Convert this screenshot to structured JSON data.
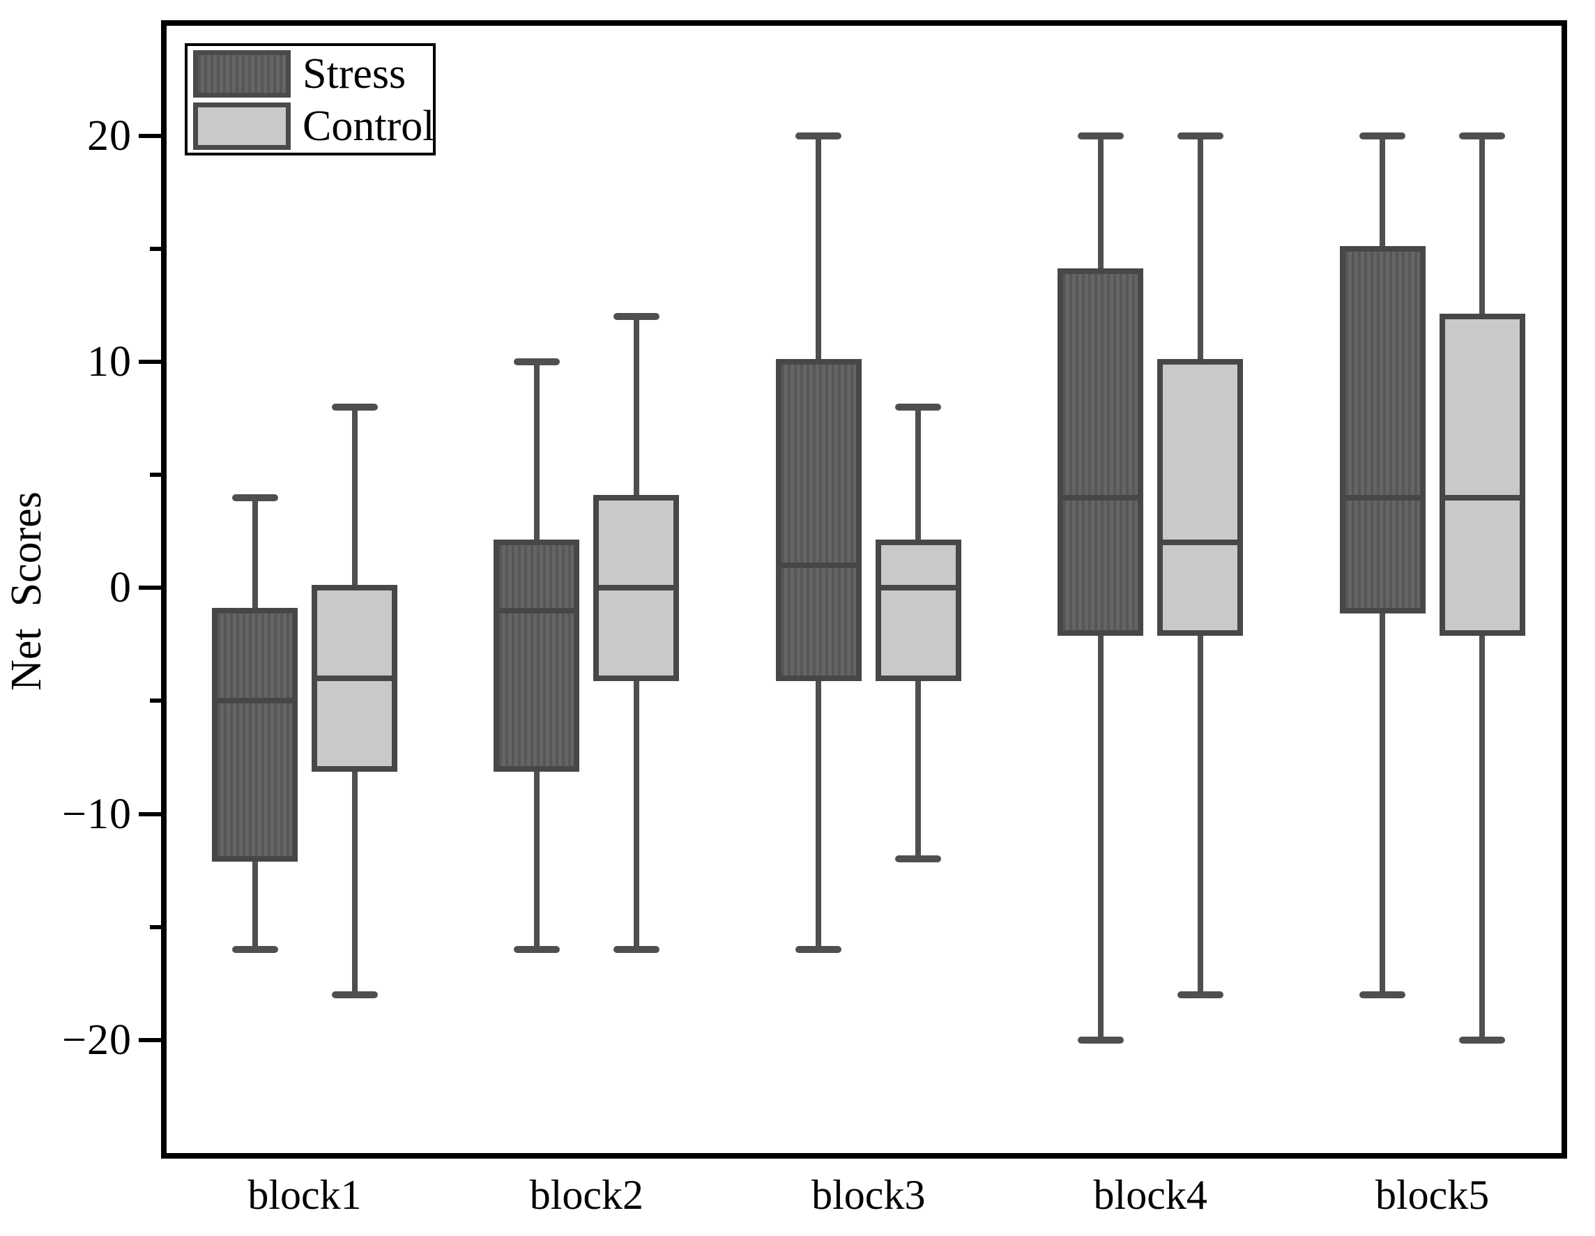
{
  "axes": {
    "y_label": "Net  Scores",
    "y_ticks_major": [
      20,
      10,
      0,
      -10,
      -20
    ],
    "y_ticks_minor": [
      15,
      5,
      -5,
      -15
    ],
    "x_categories": [
      "block1",
      "block2",
      "block3",
      "block4",
      "block5"
    ]
  },
  "legend": {
    "items": [
      {
        "label": "Stress"
      },
      {
        "label": "Control"
      }
    ]
  },
  "colors": {
    "stress_fill": "#656565",
    "stress_hatch_line": "#575757",
    "control_fill": "#c9c9c9",
    "box_stroke": "#474747",
    "whisker_stroke": "#4f4f4f",
    "axis": "#000000"
  },
  "chart_data": {
    "type": "boxplot",
    "title": "",
    "xlabel": "",
    "ylabel": "Net Scores",
    "ylim": [
      -25,
      25
    ],
    "grid": false,
    "legend_position": "top-left-inside",
    "categories": [
      "block1",
      "block2",
      "block3",
      "block4",
      "block5"
    ],
    "series": [
      {
        "name": "Stress",
        "style": "dark-hatched",
        "boxes": [
          {
            "low": -16,
            "q1": -12,
            "median": -5,
            "q3": -1,
            "high": 4
          },
          {
            "low": -16,
            "q1": -8,
            "median": -1,
            "q3": 2,
            "high": 10
          },
          {
            "low": -16,
            "q1": -4,
            "median": 1,
            "q3": 10,
            "high": 20
          },
          {
            "low": -20,
            "q1": -2,
            "median": 4,
            "q3": 14,
            "high": 20
          },
          {
            "low": -18,
            "q1": -1,
            "median": 4,
            "q3": 15,
            "high": 20
          }
        ]
      },
      {
        "name": "Control",
        "style": "light-solid",
        "boxes": [
          {
            "low": -18,
            "q1": -8,
            "median": -4,
            "q3": 0,
            "high": 8
          },
          {
            "low": -16,
            "q1": -4,
            "median": 0,
            "q3": 4,
            "high": 12
          },
          {
            "low": -12,
            "q1": -4,
            "median": 0,
            "q3": 2,
            "high": 8
          },
          {
            "low": -18,
            "q1": -2,
            "median": 2,
            "q3": 10,
            "high": 20
          },
          {
            "low": -20,
            "q1": -2,
            "median": 4,
            "q3": 12,
            "high": 20
          }
        ]
      }
    ]
  }
}
